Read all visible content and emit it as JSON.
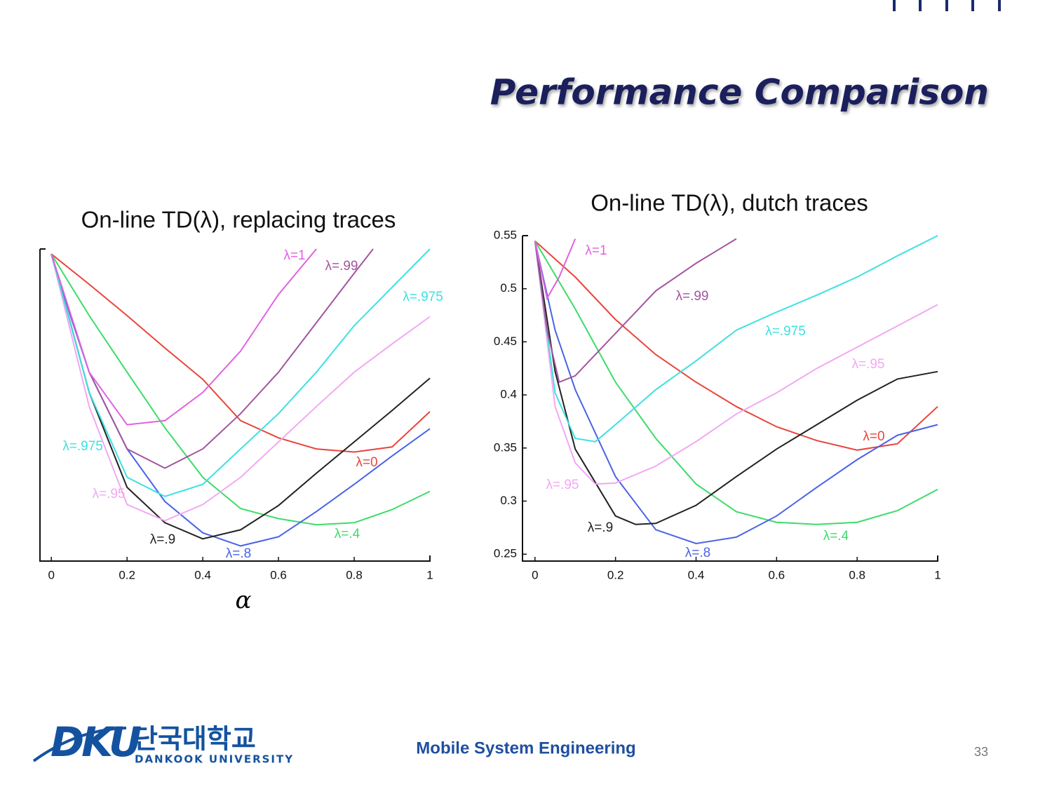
{
  "slide": {
    "title": "Performance Comparison"
  },
  "chart_data": [
    {
      "type": "line",
      "title": "On-line TD(λ), replacing traces",
      "xlabel": "α",
      "xlim": [
        -0.03,
        1
      ],
      "ylim": [
        0.241,
        0.55
      ],
      "xticks": [
        0,
        0.2,
        0.4,
        0.6,
        0.8,
        1
      ],
      "series": [
        {
          "name": "λ=0",
          "color": "#e8453c",
          "x": [
            0,
            0.1,
            0.2,
            0.3,
            0.4,
            0.5,
            0.6,
            0.7,
            0.8,
            0.9,
            1
          ],
          "values": [
            0.545,
            0.515,
            0.484,
            0.452,
            0.421,
            0.38,
            0.363,
            0.352,
            0.349,
            0.354,
            0.389
          ]
        },
        {
          "name": "λ=.4",
          "color": "#3ddc6a",
          "x": [
            0,
            0.1,
            0.2,
            0.3,
            0.4,
            0.5,
            0.6,
            0.7,
            0.8,
            0.9,
            1
          ],
          "values": [
            0.545,
            0.484,
            0.428,
            0.373,
            0.324,
            0.293,
            0.283,
            0.277,
            0.279,
            0.292,
            0.31
          ]
        },
        {
          "name": "λ=.8",
          "color": "#4a63e8",
          "x": [
            0,
            0.05,
            0.1,
            0.2,
            0.3,
            0.4,
            0.5,
            0.6,
            0.7,
            0.8,
            0.9,
            1
          ],
          "values": [
            0.545,
            0.484,
            0.428,
            0.352,
            0.3,
            0.269,
            0.256,
            0.265,
            0.29,
            0.317,
            0.345,
            0.372
          ]
        },
        {
          "name": "λ=.9",
          "color": "#222222",
          "x": [
            0,
            0.05,
            0.1,
            0.2,
            0.3,
            0.4,
            0.5,
            0.6,
            0.7,
            0.8,
            0.9,
            1
          ],
          "values": [
            0.545,
            0.477,
            0.408,
            0.314,
            0.279,
            0.263,
            0.272,
            0.296,
            0.328,
            0.359,
            0.39,
            0.422
          ]
        },
        {
          "name": "λ=.95",
          "color": "#f2a8f2",
          "x": [
            0,
            0.1,
            0.2,
            0.3,
            0.4,
            0.5,
            0.6,
            0.7,
            0.8,
            0.9,
            1
          ],
          "values": [
            0.545,
            0.394,
            0.297,
            0.281,
            0.297,
            0.324,
            0.359,
            0.394,
            0.428,
            0.456,
            0.483
          ]
        },
        {
          "name": "λ=.975",
          "color": "#3ee0e0",
          "x": [
            0,
            0.1,
            0.2,
            0.3,
            0.4,
            0.5,
            0.6,
            0.7,
            0.8,
            0.9,
            1
          ],
          "values": [
            0.545,
            0.408,
            0.324,
            0.305,
            0.317,
            0.352,
            0.387,
            0.428,
            0.474,
            0.512,
            0.55
          ]
        },
        {
          "name": "λ=.99",
          "color": "#a2559f",
          "x": [
            0,
            0.1,
            0.2,
            0.3,
            0.4,
            0.5,
            0.6,
            0.7,
            0.8,
            0.85
          ],
          "values": [
            0.545,
            0.428,
            0.352,
            0.333,
            0.352,
            0.387,
            0.428,
            0.477,
            0.526,
            0.55
          ]
        },
        {
          "name": "λ=1",
          "color": "#e062e0",
          "x": [
            0,
            0.1,
            0.2,
            0.3,
            0.4,
            0.5,
            0.6,
            0.7
          ],
          "values": [
            0.545,
            0.428,
            0.376,
            0.38,
            0.408,
            0.449,
            0.505,
            0.55
          ]
        }
      ]
    },
    {
      "type": "line",
      "title": "On-line TD(λ), dutch traces",
      "xlim": [
        -0.031,
        1
      ],
      "ylim": [
        0.2435,
        0.55
      ],
      "xticks": [
        0,
        0.2,
        0.4,
        0.6,
        0.8,
        1
      ],
      "yticks": [
        0.25,
        0.3,
        0.35,
        0.4,
        0.45,
        0.5,
        0.55
      ],
      "series": [
        {
          "name": "λ=0",
          "color": "#e8453c",
          "x": [
            0,
            0.1,
            0.2,
            0.3,
            0.4,
            0.5,
            0.6,
            0.7,
            0.8,
            0.9,
            1
          ],
          "values": [
            0.545,
            0.511,
            0.471,
            0.438,
            0.412,
            0.389,
            0.37,
            0.357,
            0.348,
            0.354,
            0.389
          ]
        },
        {
          "name": "λ=.4",
          "color": "#3ddc6a",
          "x": [
            0,
            0.1,
            0.2,
            0.3,
            0.4,
            0.5,
            0.6,
            0.7,
            0.8,
            0.9,
            1
          ],
          "values": [
            0.545,
            0.481,
            0.412,
            0.359,
            0.316,
            0.29,
            0.28,
            0.278,
            0.28,
            0.291,
            0.311
          ]
        },
        {
          "name": "λ=.8",
          "color": "#4a63e8",
          "x": [
            0,
            0.05,
            0.1,
            0.2,
            0.3,
            0.4,
            0.5,
            0.6,
            0.7,
            0.8,
            0.9,
            1
          ],
          "values": [
            0.545,
            0.461,
            0.405,
            0.323,
            0.273,
            0.26,
            0.266,
            0.286,
            0.313,
            0.339,
            0.362,
            0.372
          ]
        },
        {
          "name": "λ=.9",
          "color": "#222222",
          "x": [
            0,
            0.05,
            0.1,
            0.2,
            0.25,
            0.3,
            0.4,
            0.5,
            0.6,
            0.7,
            0.8,
            0.9,
            1
          ],
          "values": [
            0.545,
            0.422,
            0.349,
            0.286,
            0.278,
            0.279,
            0.296,
            0.323,
            0.349,
            0.372,
            0.395,
            0.415,
            0.422
          ]
        },
        {
          "name": "λ=.95",
          "color": "#f2a8f2",
          "x": [
            0,
            0.05,
            0.1,
            0.15,
            0.2,
            0.3,
            0.4,
            0.5,
            0.6,
            0.7,
            0.8,
            0.9,
            1
          ],
          "values": [
            0.545,
            0.389,
            0.336,
            0.316,
            0.317,
            0.333,
            0.356,
            0.382,
            0.402,
            0.425,
            0.445,
            0.465,
            0.485
          ]
        },
        {
          "name": "λ=.975",
          "color": "#3ee0e0",
          "x": [
            0,
            0.05,
            0.1,
            0.15,
            0.2,
            0.3,
            0.4,
            0.5,
            0.6,
            0.7,
            0.8,
            0.9,
            1
          ],
          "values": [
            0.545,
            0.402,
            0.359,
            0.356,
            0.372,
            0.405,
            0.432,
            0.461,
            0.478,
            0.494,
            0.511,
            0.531,
            0.55
          ]
        },
        {
          "name": "λ=.99",
          "color": "#a2559f",
          "x": [
            0,
            0.03,
            0.06,
            0.1,
            0.2,
            0.3,
            0.4,
            0.5
          ],
          "values": [
            0.545,
            0.461,
            0.412,
            0.418,
            0.458,
            0.498,
            0.524,
            0.547
          ]
        },
        {
          "name": "λ=1",
          "color": "#e062e0",
          "x": [
            0,
            0.03,
            0.06,
            0.1
          ],
          "values": [
            0.545,
            0.491,
            0.511,
            0.547
          ]
        }
      ]
    }
  ],
  "footer": {
    "logo": "DKU",
    "korean_name": "단국대학교",
    "english_name": "DANKOOK UNIVERSITY",
    "course": "Mobile System Engineering",
    "page_number": "33"
  }
}
